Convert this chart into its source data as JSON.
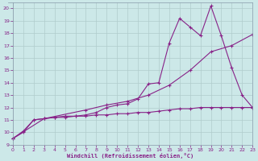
{
  "xlabel": "Windchill (Refroidissement éolien,°C)",
  "xlim": [
    -0.5,
    23
  ],
  "ylim": [
    9,
    20.5
  ],
  "xticks": [
    0,
    1,
    2,
    3,
    4,
    5,
    6,
    7,
    8,
    9,
    10,
    11,
    12,
    13,
    14,
    15,
    16,
    17,
    18,
    19,
    20,
    21,
    22,
    23
  ],
  "yticks": [
    9,
    10,
    11,
    12,
    13,
    14,
    15,
    16,
    17,
    18,
    19,
    20
  ],
  "bg_color": "#cce8e8",
  "line_color": "#882288",
  "grid_color": "#b0cccc",
  "series": [
    {
      "x": [
        0,
        1,
        2,
        3,
        4,
        5,
        6,
        7,
        8,
        9,
        10,
        11,
        12,
        13,
        14,
        15,
        16,
        17,
        18,
        19,
        20,
        21,
        22,
        23
      ],
      "y": [
        9.5,
        10.1,
        11.0,
        11.1,
        11.2,
        11.2,
        11.3,
        11.3,
        11.4,
        11.4,
        11.5,
        11.5,
        11.6,
        11.6,
        11.7,
        11.8,
        11.9,
        11.9,
        12.0,
        12.0,
        12.0,
        12.0,
        12.0,
        12.0
      ]
    },
    {
      "x": [
        0,
        3,
        7,
        9,
        11,
        13,
        15,
        17,
        19,
        21,
        23
      ],
      "y": [
        9.5,
        11.1,
        11.8,
        12.2,
        12.5,
        13.0,
        13.8,
        15.0,
        16.5,
        17.0,
        17.9
      ]
    },
    {
      "x": [
        0,
        1,
        2,
        3,
        4,
        5,
        6,
        7,
        8,
        9,
        10,
        11,
        12,
        13,
        14,
        15,
        16,
        17,
        18,
        19,
        20,
        21,
        22,
        23
      ],
      "y": [
        9.5,
        10.0,
        11.0,
        11.1,
        11.2,
        11.3,
        11.3,
        11.4,
        11.6,
        12.0,
        12.2,
        12.3,
        12.7,
        13.9,
        14.0,
        17.2,
        19.2,
        18.5,
        17.8,
        20.2,
        17.8,
        15.2,
        13.0,
        12.0
      ]
    }
  ]
}
